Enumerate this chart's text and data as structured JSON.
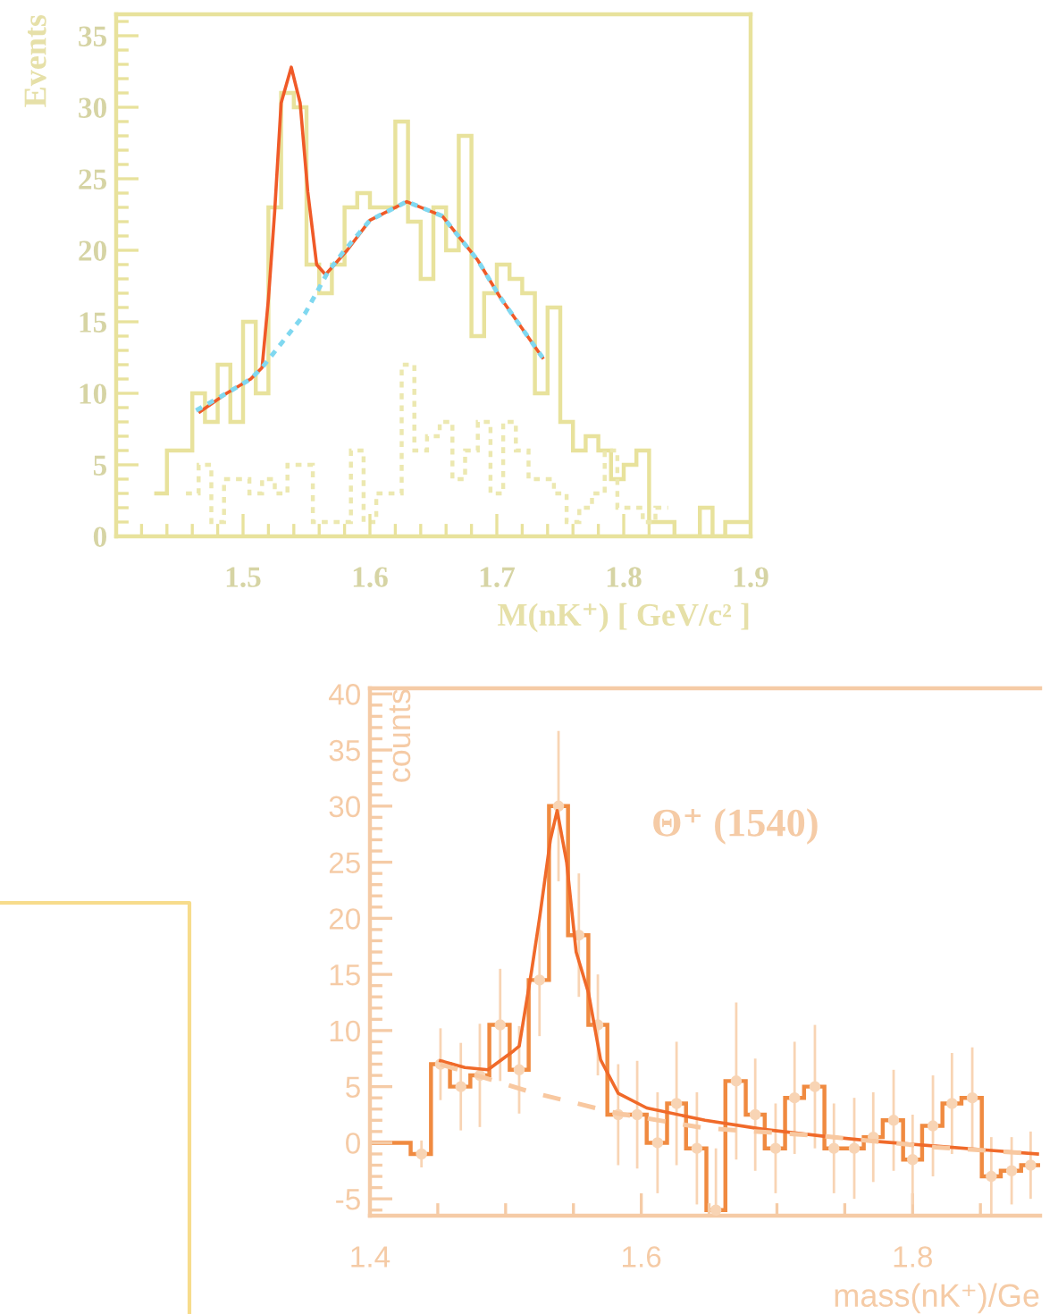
{
  "chart_data": [
    {
      "type": "histogram",
      "xlabel": "M(nK⁺) [ GeV/c² ]",
      "ylabel": "Events",
      "xlim": [
        1.4,
        1.9
      ],
      "ylim": [
        0,
        36.5
      ],
      "xticks": [
        {
          "value": 1.42,
          "label": null
        },
        {
          "value": 1.44,
          "label": null
        },
        {
          "value": 1.46,
          "label": null
        },
        {
          "value": 1.48,
          "label": null
        },
        1.5,
        {
          "value": 1.52,
          "label": null
        },
        {
          "value": 1.54,
          "label": null
        },
        {
          "value": 1.56,
          "label": null
        },
        {
          "value": 1.58,
          "label": null
        },
        1.6,
        {
          "value": 1.62,
          "label": null
        },
        {
          "value": 1.64,
          "label": null
        },
        {
          "value": 1.66,
          "label": null
        },
        {
          "value": 1.68,
          "label": null
        },
        1.7,
        {
          "value": 1.72,
          "label": null
        },
        {
          "value": 1.74,
          "label": null
        },
        {
          "value": 1.76,
          "label": null
        },
        {
          "value": 1.78,
          "label": null
        },
        1.8,
        {
          "value": 1.82,
          "label": null
        },
        {
          "value": 1.84,
          "label": null
        },
        {
          "value": 1.86,
          "label": null
        },
        {
          "value": 1.88,
          "label": null
        },
        1.9
      ],
      "yticks": [
        0,
        {
          "value": 1,
          "label": null
        },
        {
          "value": 2,
          "label": null
        },
        {
          "value": 3,
          "label": null
        },
        {
          "value": 4,
          "label": null
        },
        5,
        {
          "value": 6,
          "label": null
        },
        {
          "value": 7,
          "label": null
        },
        {
          "value": 8,
          "label": null
        },
        {
          "value": 9,
          "label": null
        },
        10,
        {
          "value": 11,
          "label": null
        },
        {
          "value": 12,
          "label": null
        },
        {
          "value": 13,
          "label": null
        },
        {
          "value": 14,
          "label": null
        },
        15,
        {
          "value": 16,
          "label": null
        },
        {
          "value": 17,
          "label": null
        },
        {
          "value": 18,
          "label": null
        },
        {
          "value": 19,
          "label": null
        },
        20,
        {
          "value": 21,
          "label": null
        },
        {
          "value": 22,
          "label": null
        },
        {
          "value": 23,
          "label": null
        },
        {
          "value": 24,
          "label": null
        },
        25,
        {
          "value": 26,
          "label": null
        },
        {
          "value": 27,
          "label": null
        },
        {
          "value": 28,
          "label": null
        },
        {
          "value": 29,
          "label": null
        },
        30,
        {
          "value": 31,
          "label": null
        },
        {
          "value": 32,
          "label": null
        },
        {
          "value": 33,
          "label": null
        },
        {
          "value": 34,
          "label": null
        },
        35,
        {
          "value": 36,
          "label": null
        }
      ],
      "series": [
        {
          "color": "#e8e29c",
          "line_style": "solid",
          "bins": [
            1.43,
            1.44,
            1.45,
            1.46,
            1.47,
            1.48,
            1.49,
            1.5,
            1.51,
            1.52,
            1.53,
            1.54,
            1.55,
            1.56,
            1.57,
            1.58,
            1.59,
            1.6,
            1.61,
            1.62,
            1.63,
            1.64,
            1.65,
            1.66,
            1.67,
            1.68,
            1.69,
            1.7,
            1.71,
            1.72,
            1.73,
            1.74,
            1.75,
            1.76,
            1.77,
            1.78,
            1.79,
            1.8,
            1.81,
            1.82,
            1.83,
            1.84,
            1.85,
            1.86,
            1.87,
            1.88,
            1.89,
            1.9
          ],
          "values": [
            3,
            6,
            6,
            10,
            8,
            12,
            8,
            15,
            10,
            23,
            31,
            30,
            19,
            17,
            19,
            23,
            24,
            23,
            23,
            29,
            22,
            18,
            23,
            20,
            28,
            14,
            17,
            19,
            18,
            17,
            10,
            16,
            8,
            6,
            7,
            6,
            4,
            5,
            6,
            1,
            1,
            0,
            0,
            2,
            0,
            1,
            1
          ]
        },
        {
          "color": "#ece8b0",
          "line_style": "dotted",
          "bins": [
            1.455,
            1.465,
            1.475,
            1.485,
            1.495,
            1.505,
            1.515,
            1.525,
            1.535,
            1.545,
            1.555,
            1.565,
            1.575,
            1.585,
            1.595,
            1.605,
            1.615,
            1.625,
            1.635,
            1.645,
            1.655,
            1.665,
            1.675,
            1.685,
            1.695,
            1.705,
            1.715,
            1.725,
            1.735,
            1.745,
            1.755,
            1.765,
            1.775,
            1.785,
            1.795,
            1.805,
            1.815,
            1.825,
            1.835
          ],
          "values": [
            3,
            5,
            1,
            4,
            4,
            3,
            4,
            3,
            5,
            5,
            1,
            1,
            1,
            6,
            1,
            3,
            3,
            12,
            6,
            7,
            8,
            4,
            6,
            8,
            3,
            8,
            6,
            4,
            4,
            3,
            1,
            2,
            3,
            6,
            2,
            2,
            1,
            2
          ]
        },
        {
          "type": "line",
          "color": "#80d8f0",
          "line_style": "dotted",
          "x": [
            1.463,
            1.487,
            1.506,
            1.515,
            1.549,
            1.567,
            1.58,
            1.6,
            1.629,
            1.657,
            1.685,
            1.702,
            1.736
          ],
          "values": [
            8.8,
            10.0,
            11.0,
            11.8,
            15.6,
            18.5,
            20.0,
            22.1,
            23.4,
            22.4,
            19.3,
            16.8,
            12.5
          ]
        },
        {
          "type": "line",
          "color": "#f05a28",
          "line_style": "solid",
          "x": [
            1.466,
            1.487,
            1.506,
            1.515,
            1.52,
            1.525,
            1.53,
            1.538,
            1.545,
            1.551,
            1.558,
            1.565,
            1.582,
            1.6,
            1.629,
            1.657,
            1.685,
            1.702,
            1.736
          ],
          "values": [
            8.7,
            10.0,
            11.0,
            11.8,
            16.6,
            22.8,
            30.3,
            32.8,
            30.3,
            24.1,
            19.0,
            18.3,
            20.0,
            22.1,
            23.4,
            22.4,
            19.3,
            16.8,
            12.5
          ]
        }
      ]
    },
    {
      "type": "histogram",
      "xlabel": "mass(nK⁺)/Ge",
      "ylabel": "counts",
      "annotations": [
        "Θ⁺ (1540)"
      ],
      "xlim": [
        1.4,
        1.894
      ],
      "ylim": [
        -6.5,
        40.5
      ],
      "xticks": [
        1.4,
        {
          "value": 1.45,
          "label": null
        },
        {
          "value": 1.5,
          "label": null
        },
        {
          "value": 1.55,
          "label": null
        },
        1.6,
        {
          "value": 1.65,
          "label": null
        },
        {
          "value": 1.7,
          "label": null
        },
        {
          "value": 1.75,
          "label": null
        },
        1.8,
        {
          "value": 1.85,
          "label": null
        }
      ],
      "yticks": [
        {
          "value": -6,
          "label": null
        },
        -5,
        {
          "value": -4,
          "label": null
        },
        {
          "value": -3,
          "label": null
        },
        {
          "value": -2,
          "label": null
        },
        {
          "value": -1,
          "label": null
        },
        0,
        {
          "value": 1,
          "label": null
        },
        {
          "value": 2,
          "label": null
        },
        {
          "value": 3,
          "label": null
        },
        {
          "value": 4,
          "label": null
        },
        5,
        {
          "value": 6,
          "label": null
        },
        {
          "value": 7,
          "label": null
        },
        {
          "value": 8,
          "label": null
        },
        {
          "value": 9,
          "label": null
        },
        10,
        {
          "value": 11,
          "label": null
        },
        {
          "value": 12,
          "label": null
        },
        {
          "value": 13,
          "label": null
        },
        {
          "value": 14,
          "label": null
        },
        15,
        {
          "value": 16,
          "label": null
        },
        {
          "value": 17,
          "label": null
        },
        {
          "value": 18,
          "label": null
        },
        {
          "value": 19,
          "label": null
        },
        20,
        {
          "value": 21,
          "label": null
        },
        {
          "value": 22,
          "label": null
        },
        {
          "value": 23,
          "label": null
        },
        {
          "value": 24,
          "label": null
        },
        25,
        {
          "value": 26,
          "label": null
        },
        {
          "value": 27,
          "label": null
        },
        {
          "value": 28,
          "label": null
        },
        {
          "value": 29,
          "label": null
        },
        30,
        {
          "value": 31,
          "label": null
        },
        {
          "value": 32,
          "label": null
        },
        {
          "value": 33,
          "label": null
        },
        {
          "value": 34,
          "label": null
        },
        35,
        {
          "value": 36,
          "label": null
        },
        {
          "value": 37,
          "label": null
        },
        {
          "value": 38,
          "label": null
        },
        {
          "value": 39,
          "label": null
        },
        40
      ],
      "series": [
        {
          "color": "#f08a40",
          "line_style": "solid",
          "bins": [
            1.401,
            1.416,
            1.43,
            1.445,
            1.459,
            1.474,
            1.488,
            1.503,
            1.517,
            1.532,
            1.546,
            1.561,
            1.575,
            1.59,
            1.604,
            1.619,
            1.633,
            1.648,
            1.662,
            1.677,
            1.691,
            1.706,
            1.72,
            1.735,
            1.749,
            1.764,
            1.778,
            1.793,
            1.807,
            1.822,
            1.836,
            1.851,
            1.865,
            1.88,
            1.894
          ],
          "values": [
            0,
            0,
            -1,
            7,
            5,
            6,
            10.5,
            6.5,
            14.5,
            30,
            18.5,
            10.5,
            2.5,
            2.5,
            0,
            3.5,
            -0.5,
            -6,
            5.5,
            2.5,
            -0.5,
            4,
            5,
            -0.5,
            -0.5,
            0.5,
            2,
            -1.5,
            1.5,
            3.5,
            4,
            -3,
            -2.5,
            -2
          ]
        },
        {
          "type": "scatter",
          "marker": "circle",
          "color": "#f8d4b4",
          "x": [
            1.438,
            1.452,
            1.467,
            1.481,
            1.496,
            1.51,
            1.525,
            1.539,
            1.554,
            1.568,
            1.583,
            1.597,
            1.612,
            1.626,
            1.641,
            1.655,
            1.67,
            1.684,
            1.699,
            1.713,
            1.728,
            1.742,
            1.757,
            1.771,
            1.786,
            1.8,
            1.815,
            1.829,
            1.844,
            1.858,
            1.873,
            1.887
          ],
          "values": [
            -1,
            7,
            5,
            6,
            10.5,
            6.5,
            14.5,
            30,
            18.5,
            10.5,
            2.5,
            2.5,
            0,
            3.5,
            -0.5,
            -6,
            5.5,
            2.5,
            -0.5,
            4,
            5,
            -0.5,
            -0.5,
            0.5,
            2,
            -1.5,
            1.5,
            3.5,
            4,
            -3,
            -2.5,
            -2
          ],
          "errors": [
            1.2,
            3.2,
            3.9,
            4.6,
            5,
            3.9,
            5,
            6.7,
            5.5,
            4.5,
            4.5,
            4.8,
            4.5,
            5.5,
            5,
            5.5,
            7,
            5,
            4,
            5,
            5.5,
            4,
            4.5,
            4,
            4.5,
            4,
            4.5,
            4.5,
            4.5,
            3.5,
            3,
            3
          ]
        },
        {
          "type": "line",
          "color": "#f8c8a0",
          "line_style": "dashed",
          "x": [
            1.452,
            1.519,
            1.583,
            1.647,
            1.733,
            1.817,
            1.892
          ],
          "values": [
            7.0,
            4.5,
            2.6,
            1.3,
            0.6,
            -0.4,
            -1.0
          ]
        },
        {
          "type": "line",
          "color": "#f06a2a",
          "line_style": "solid",
          "x": [
            1.452,
            1.47,
            1.487,
            1.506,
            1.51,
            1.519,
            1.525,
            1.533,
            1.538,
            1.545,
            1.552,
            1.561,
            1.57,
            1.583,
            1.604,
            1.647,
            1.69,
            1.733,
            1.775,
            1.817,
            1.86,
            1.892
          ],
          "values": [
            7.3,
            6.7,
            6.5,
            8.2,
            8.6,
            15.2,
            20,
            27,
            29.6,
            25,
            17,
            13.4,
            7.4,
            4.4,
            3.1,
            2.0,
            1.2,
            0.6,
            0.1,
            -0.3,
            -0.7,
            -1.0
          ]
        }
      ]
    }
  ]
}
